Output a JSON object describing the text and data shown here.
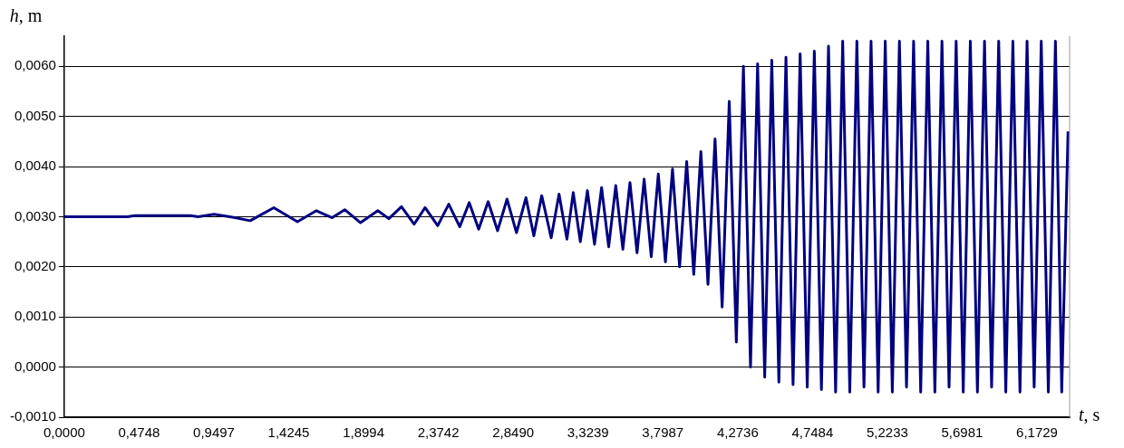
{
  "chart_data": {
    "type": "line",
    "xlabel": "t, s",
    "ylabel": "h, m",
    "grid": "y",
    "legend": false,
    "marker": "none",
    "line_style": "solid",
    "xlim": [
      0,
      6.38
    ],
    "xticks": [
      {
        "value": 0,
        "label": "0,0000"
      },
      {
        "value": 0.4748,
        "label": "0,4748"
      },
      {
        "value": 0.9497,
        "label": "0,9497"
      },
      {
        "value": 1.4245,
        "label": "1,4245"
      },
      {
        "value": 1.8994,
        "label": "1,8994"
      },
      {
        "value": 2.3742,
        "label": "2,3742"
      },
      {
        "value": 2.849,
        "label": "2,8490"
      },
      {
        "value": 3.3239,
        "label": "3,3239"
      },
      {
        "value": 3.7987,
        "label": "3,7987"
      },
      {
        "value": 4.2736,
        "label": "4,2736"
      },
      {
        "value": 4.7484,
        "label": "4,7484"
      },
      {
        "value": 5.2233,
        "label": "5,2233"
      },
      {
        "value": 5.6981,
        "label": "5,6981"
      },
      {
        "value": 6.1729,
        "label": "6,1729"
      }
    ],
    "ylim": [
      -0.001,
      0.0066
    ],
    "yticks": [
      {
        "value": -0.001,
        "label": "-0,0010"
      },
      {
        "value": 0,
        "label": "0,0000"
      },
      {
        "value": 0.001,
        "label": "0,0010"
      },
      {
        "value": 0.002,
        "label": "0,0020"
      },
      {
        "value": 0.003,
        "label": "0,0030"
      },
      {
        "value": 0.004,
        "label": "0,0040"
      },
      {
        "value": 0.005,
        "label": "0,0050"
      },
      {
        "value": 0.006,
        "label": "0,0060"
      }
    ],
    "series": [
      {
        "color": "#000080",
        "x": [
          0,
          0.4,
          0.45,
          0.8,
          0.85,
          0.95,
          1.05,
          1.18,
          1.33,
          1.48,
          1.6,
          1.7,
          1.78,
          1.88,
          1.99,
          2.06,
          2.14,
          2.22,
          2.29,
          2.37,
          2.44,
          2.51,
          2.57,
          2.63,
          2.69,
          2.75,
          2.81,
          2.87,
          2.93,
          2.98,
          3.03,
          3.09,
          3.14,
          3.19,
          3.23,
          3.275,
          3.32,
          3.365,
          3.41,
          3.455,
          3.5,
          3.545,
          3.59,
          3.635,
          3.68,
          3.725,
          3.77,
          3.815,
          3.86,
          3.905,
          3.95,
          3.995,
          4.04,
          4.085,
          4.13,
          4.175,
          4.22,
          4.265,
          4.31,
          4.355,
          4.4,
          4.445,
          4.49,
          4.535,
          4.58,
          4.625,
          4.67,
          4.715,
          4.76,
          4.805,
          4.85,
          4.895,
          4.94,
          4.985,
          5.03,
          5.075,
          5.12,
          5.165,
          5.21,
          5.255,
          5.3,
          5.345,
          5.39,
          5.435,
          5.48,
          5.525,
          5.57,
          5.615,
          5.66,
          5.705,
          5.75,
          5.795,
          5.84,
          5.885,
          5.93,
          5.975,
          6.02,
          6.065,
          6.11,
          6.155,
          6.2,
          6.245,
          6.29,
          6.33,
          6.37
        ],
        "values": [
          0.003,
          0.003,
          0.00302,
          0.00302,
          0.003,
          0.00305,
          0.003,
          0.00292,
          0.00318,
          0.0029,
          0.00312,
          0.00298,
          0.00314,
          0.00288,
          0.00312,
          0.00296,
          0.0032,
          0.00285,
          0.00318,
          0.00282,
          0.00325,
          0.0028,
          0.00328,
          0.00275,
          0.0033,
          0.00272,
          0.00335,
          0.00268,
          0.00338,
          0.00262,
          0.00342,
          0.00258,
          0.00345,
          0.00255,
          0.00348,
          0.0025,
          0.00352,
          0.00245,
          0.00358,
          0.0024,
          0.00362,
          0.00235,
          0.00368,
          0.00228,
          0.00375,
          0.0022,
          0.00385,
          0.0021,
          0.00395,
          0.002,
          0.0041,
          0.00185,
          0.0043,
          0.00165,
          0.00455,
          0.0012,
          0.0053,
          0.0005,
          0.006,
          0,
          0.00605,
          -0.0002,
          0.00612,
          -0.0003,
          0.00618,
          -0.00035,
          0.00625,
          -0.0004,
          0.0063,
          -0.00045,
          0.0064,
          -0.0005,
          0.0065,
          -0.0005,
          0.0065,
          -0.0004,
          0.0065,
          -0.0005,
          0.0065,
          -0.0005,
          0.0065,
          -0.0004,
          0.0065,
          -0.0005,
          0.0065,
          -0.0005,
          0.0065,
          -0.0004,
          0.0065,
          -0.0005,
          0.0065,
          -0.0005,
          0.0065,
          -0.0004,
          0.0065,
          -0.0005,
          0.0065,
          -0.0005,
          0.0065,
          -0.0004,
          0.0065,
          -0.0005,
          0.0065,
          -0.0005,
          0.0047
        ]
      }
    ]
  }
}
